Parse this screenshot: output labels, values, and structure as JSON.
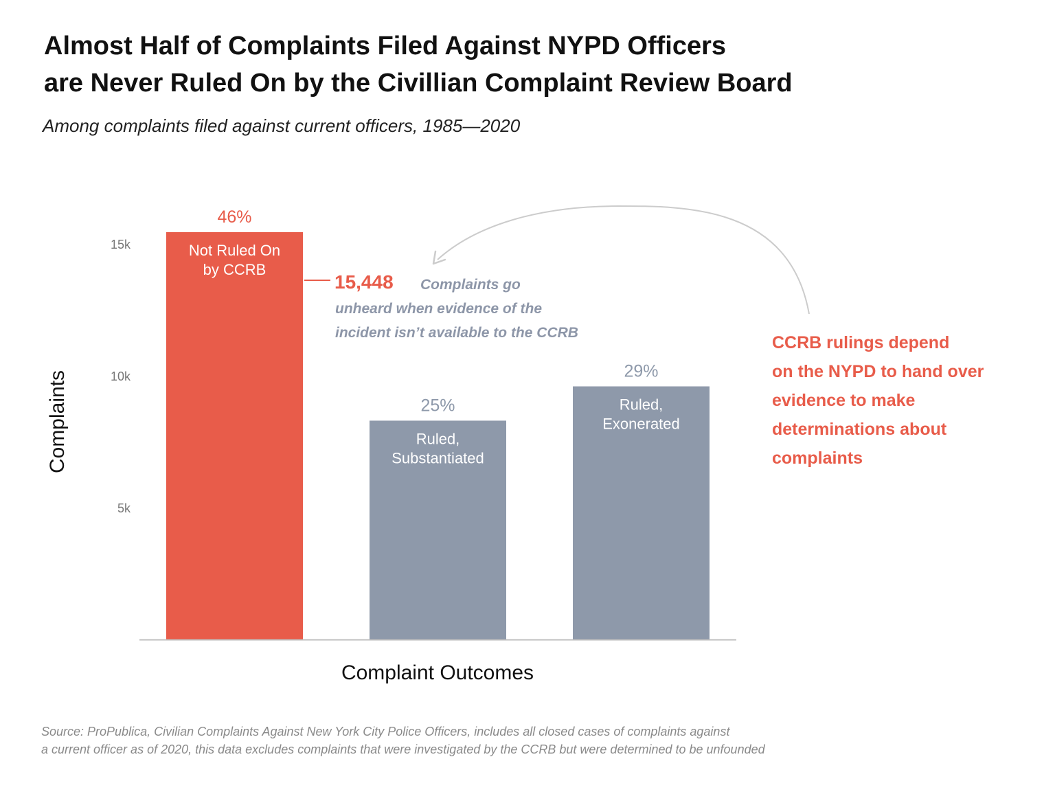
{
  "title": {
    "line1": "Almost Half of Complaints Filed Against NYPD Officers",
    "line2": "are Never Ruled On by the Civillian Complaint Review Board"
  },
  "subtitle": "Among complaints filed against current officers, 1985—2020",
  "colors": {
    "accent": "#e85c4a",
    "gray_bar": "#8e99aa",
    "gray_text": "#8d96a8"
  },
  "chart_data": {
    "type": "bar",
    "xlabel": "Complaint Outcomes",
    "ylabel": "Complaints",
    "ylim": [
      0,
      15448
    ],
    "yticks": [
      {
        "value": 5000,
        "label": "5k"
      },
      {
        "value": 10000,
        "label": "10k"
      },
      {
        "value": 15000,
        "label": "15k"
      }
    ],
    "grid": false,
    "categories": [
      "Not Ruled On by CCRB",
      "Ruled, Substantiated",
      "Ruled, Exonerated"
    ],
    "bars": [
      {
        "label_lines": [
          "Not Ruled On",
          "by CCRB"
        ],
        "value": 15448,
        "percent": "46%",
        "color": "#e85c4a",
        "pct_color": "#e85c4a"
      },
      {
        "label_lines": [
          "Ruled,",
          "Substantiated"
        ],
        "value": 8300,
        "percent": "25%",
        "color": "#8e99aa",
        "pct_color": "#8e99aa"
      },
      {
        "label_lines": [
          "Ruled,",
          "Exonerated"
        ],
        "value": 9600,
        "percent": "29%",
        "color": "#8e99aa",
        "pct_color": "#8e99aa"
      }
    ],
    "annotations": {
      "callout_value": "15,448",
      "callout_lines": [
        "Complaints go",
        "unheard when evidence of the",
        "incident isn’t available to the CCRB"
      ],
      "side_note_lines": [
        "CCRB rulings depend",
        "on the NYPD to hand over",
        "evidence to make",
        "determinations about",
        "complaints"
      ]
    }
  },
  "source": {
    "line1": "Source: ProPublica, Civilian Complaints Against New York City Police Officers, includes all closed cases of complaints against",
    "line2": "a current officer as of 2020, this data excludes complaints that were investigated by the CCRB but were determined to be unfounded"
  }
}
